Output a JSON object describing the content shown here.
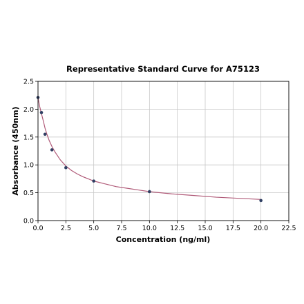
{
  "chart_data": {
    "type": "scatter",
    "title": "Representative Standard Curve for A75123",
    "xlabel": "Concentration (ng/ml)",
    "ylabel": "Absorbance (450nm)",
    "xlim": [
      0,
      22.5
    ],
    "ylim": [
      0,
      2.5
    ],
    "x_ticks": [
      "0.0",
      "2.5",
      "5.0",
      "7.5",
      "10.0",
      "12.5",
      "15.0",
      "17.5",
      "20.0",
      "22.5"
    ],
    "y_ticks": [
      "0.0",
      "0.5",
      "1.0",
      "1.5",
      "2.0",
      "2.5"
    ],
    "grid": true,
    "points": [
      {
        "x": 0.0,
        "y": 2.21
      },
      {
        "x": 0.31,
        "y": 1.94
      },
      {
        "x": 0.63,
        "y": 1.55
      },
      {
        "x": 1.25,
        "y": 1.27
      },
      {
        "x": 2.5,
        "y": 0.95
      },
      {
        "x": 5.0,
        "y": 0.71
      },
      {
        "x": 10.0,
        "y": 0.52
      },
      {
        "x": 20.0,
        "y": 0.36
      }
    ],
    "fit_curve": [
      {
        "x": 0.0,
        "y": 2.21
      },
      {
        "x": 0.15,
        "y": 2.05
      },
      {
        "x": 0.31,
        "y": 1.92
      },
      {
        "x": 0.5,
        "y": 1.77
      },
      {
        "x": 0.63,
        "y": 1.66
      },
      {
        "x": 0.8,
        "y": 1.55
      },
      {
        "x": 1.0,
        "y": 1.44
      },
      {
        "x": 1.25,
        "y": 1.33
      },
      {
        "x": 1.5,
        "y": 1.24
      },
      {
        "x": 2.0,
        "y": 1.09
      },
      {
        "x": 2.5,
        "y": 0.98
      },
      {
        "x": 3.0,
        "y": 0.9
      },
      {
        "x": 3.5,
        "y": 0.84
      },
      {
        "x": 4.0,
        "y": 0.79
      },
      {
        "x": 5.0,
        "y": 0.71
      },
      {
        "x": 6.0,
        "y": 0.66
      },
      {
        "x": 7.0,
        "y": 0.61
      },
      {
        "x": 8.0,
        "y": 0.58
      },
      {
        "x": 9.0,
        "y": 0.55
      },
      {
        "x": 10.0,
        "y": 0.52
      },
      {
        "x": 12.0,
        "y": 0.48
      },
      {
        "x": 14.0,
        "y": 0.45
      },
      {
        "x": 16.0,
        "y": 0.42
      },
      {
        "x": 18.0,
        "y": 0.4
      },
      {
        "x": 20.0,
        "y": 0.38
      }
    ],
    "colors": {
      "curve": "#b05a78",
      "points": "#2f3f63",
      "grid": "#c8c8c8"
    }
  }
}
